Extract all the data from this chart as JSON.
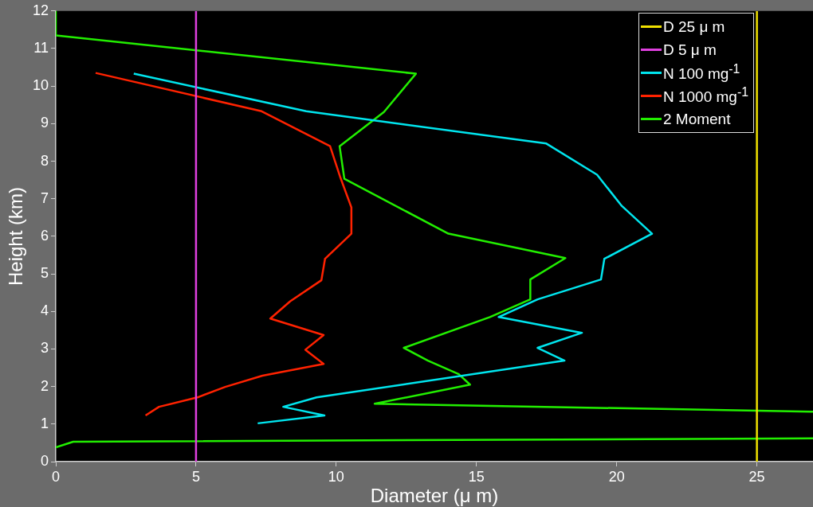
{
  "chart_data": {
    "type": "line",
    "xlabel": "Diameter (μ m)",
    "ylabel": "Height (km)",
    "xlim": [
      0,
      27
    ],
    "ylim": [
      0,
      12
    ],
    "xticks": [
      0,
      5,
      10,
      15,
      20,
      25
    ],
    "yticks": [
      0,
      1,
      2,
      3,
      4,
      5,
      6,
      7,
      8,
      9,
      10,
      11,
      12
    ],
    "grid": false,
    "legend": "top right",
    "marker": "none",
    "line_style": "solid",
    "series": [
      {
        "name": "D 25 μ m",
        "color": "#f0e000",
        "x": [
          25,
          25
        ],
        "values": [
          0,
          12
        ]
      },
      {
        "name": "D 5 μ m",
        "color": "#e040e0",
        "x": [
          5,
          5
        ],
        "values": [
          0,
          12
        ]
      },
      {
        "name": "N 100 mg$^{-1}$",
        "color": "#00e5ee",
        "x": [
          2.78,
          8.93,
          17.49,
          19.3,
          20.18,
          21.26,
          19.56,
          19.44,
          17.18,
          15.79,
          18.76,
          17.18,
          18.14,
          9.3,
          8.11,
          9.58,
          7.2
        ],
        "values": [
          10.33,
          9.33,
          8.47,
          7.64,
          6.81,
          6.07,
          5.4,
          4.85,
          4.32,
          3.85,
          3.43,
          3.03,
          2.69,
          1.71,
          1.46,
          1.23,
          1.02
        ]
      },
      {
        "name": "N 1000 mg$^{-1}$",
        "color": "#ff2200",
        "x": [
          1.42,
          7.34,
          9.78,
          10.15,
          10.54,
          10.54,
          9.6,
          9.47,
          8.36,
          7.65,
          9.55,
          8.9,
          9.55,
          7.37,
          6.04,
          5.05,
          3.68,
          3.2
        ],
        "values": [
          10.35,
          9.33,
          8.4,
          7.56,
          6.77,
          6.07,
          5.4,
          4.83,
          4.27,
          3.81,
          3.37,
          2.98,
          2.6,
          2.29,
          1.99,
          1.71,
          1.46,
          1.23
        ]
      },
      {
        "name": "2 Moment",
        "color": "#22ee00",
        "x": [
          0,
          0,
          12.84,
          11.7,
          10.12,
          10.29,
          14.0,
          18.17,
          16.92,
          16.92,
          15.48,
          12.41,
          13.27,
          14.37,
          14.77,
          11.37,
          27,
          null,
          27,
          0.62,
          0
        ],
        "values": [
          12,
          11.35,
          10.33,
          9.31,
          8.4,
          7.53,
          6.07,
          5.42,
          4.85,
          4.32,
          3.85,
          3.03,
          2.69,
          2.33,
          2.05,
          1.54,
          1.33,
          null,
          0.62,
          0.53,
          0.38
        ]
      }
    ]
  }
}
